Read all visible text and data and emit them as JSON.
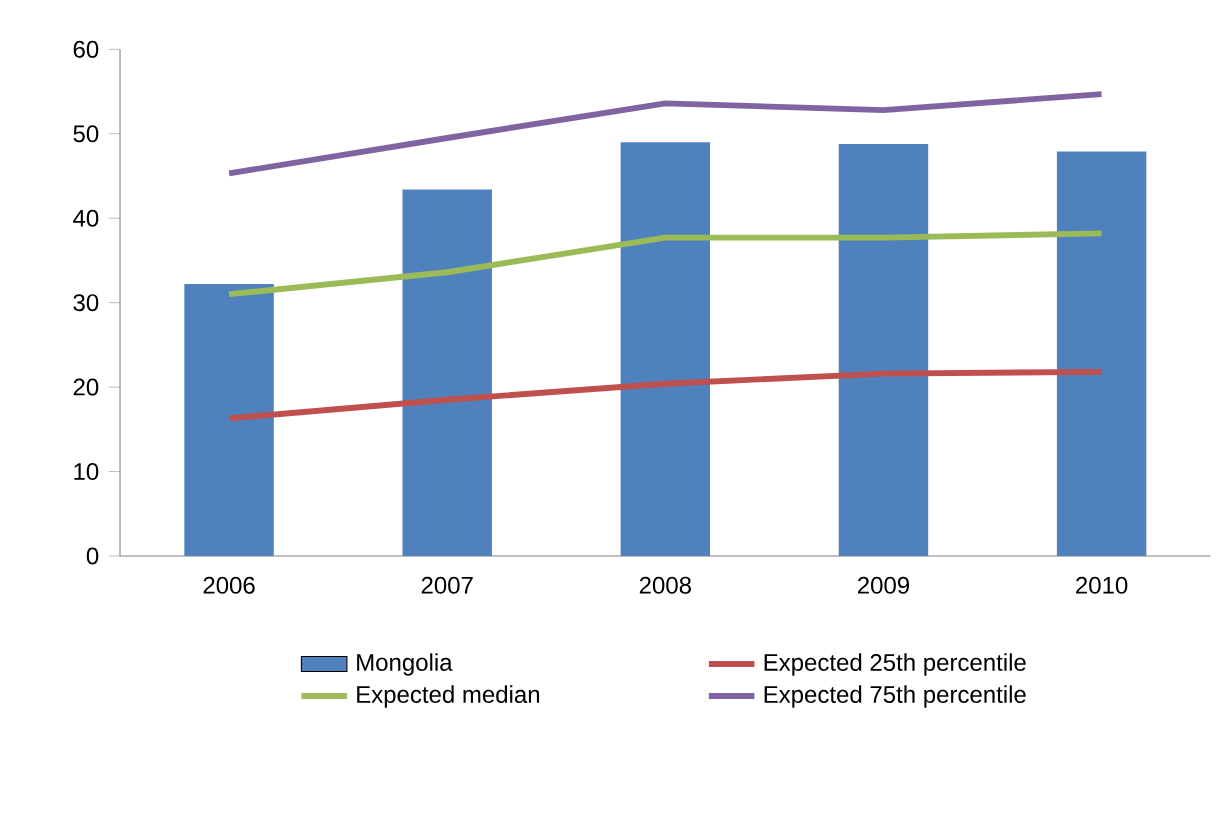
{
  "chart_data": {
    "type": "bar",
    "categories": [
      "2006",
      "2007",
      "2008",
      "2009",
      "2010"
    ],
    "series": [
      {
        "name": "Mongolia",
        "color": "#4f81bd",
        "values": [
          32.2,
          43.4,
          49,
          48.8,
          47.9
        ]
      },
      {
        "name": "Expected 25th percentile",
        "type": "line",
        "color": "#c0504d",
        "values": [
          16.3,
          18.5,
          20.4,
          21.6,
          21.8
        ]
      },
      {
        "name": "Expected median",
        "type": "line",
        "color": "#9bbb59",
        "values": [
          31,
          33.6,
          37.7,
          37.7,
          38.2
        ]
      },
      {
        "name": "Expected 75th percentile",
        "type": "line",
        "color": "#8064a2",
        "values": [
          45.3,
          49.5,
          53.6,
          52.8,
          54.7
        ]
      }
    ],
    "ylim": [
      0,
      60
    ],
    "yticks": [
      0,
      10,
      20,
      30,
      40,
      50,
      60
    ],
    "grid": false,
    "legend": "bottom",
    "marker": "none"
  }
}
